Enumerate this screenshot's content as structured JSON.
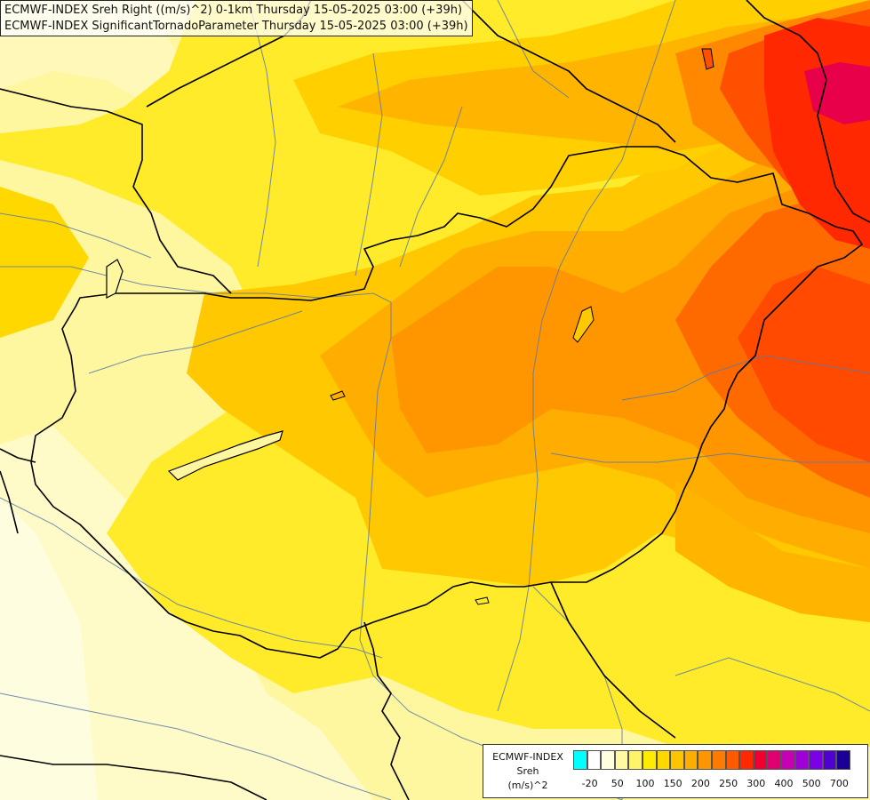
{
  "titles": [
    "ECMWF-INDEX Sreh Right ((m/s)^2) 0-1km Thursday 15-05-2025 03:00 (+39h)",
    "ECMWF-INDEX SignificantTornadoParameter Thursday 15-05-2025 03:00 (+39h)"
  ],
  "legend": {
    "model": "ECMWF-INDEX",
    "variable": "Sreh",
    "unit": "(m/s)^2",
    "colors": [
      "#00ffff",
      "#ffffff",
      "#ffffe0",
      "#fffaa0",
      "#fff36a",
      "#ffeb00",
      "#ffd800",
      "#ffc400",
      "#ffae00",
      "#ff9600",
      "#ff7a00",
      "#ff5a00",
      "#ff2800",
      "#f00030",
      "#e00070",
      "#c800b4",
      "#a000d8",
      "#7a00e6",
      "#5000d0",
      "#1c0096"
    ],
    "ticks": [
      "-20",
      "50",
      "100",
      "150",
      "200",
      "250",
      "300",
      "400",
      "500",
      "700"
    ]
  }
}
